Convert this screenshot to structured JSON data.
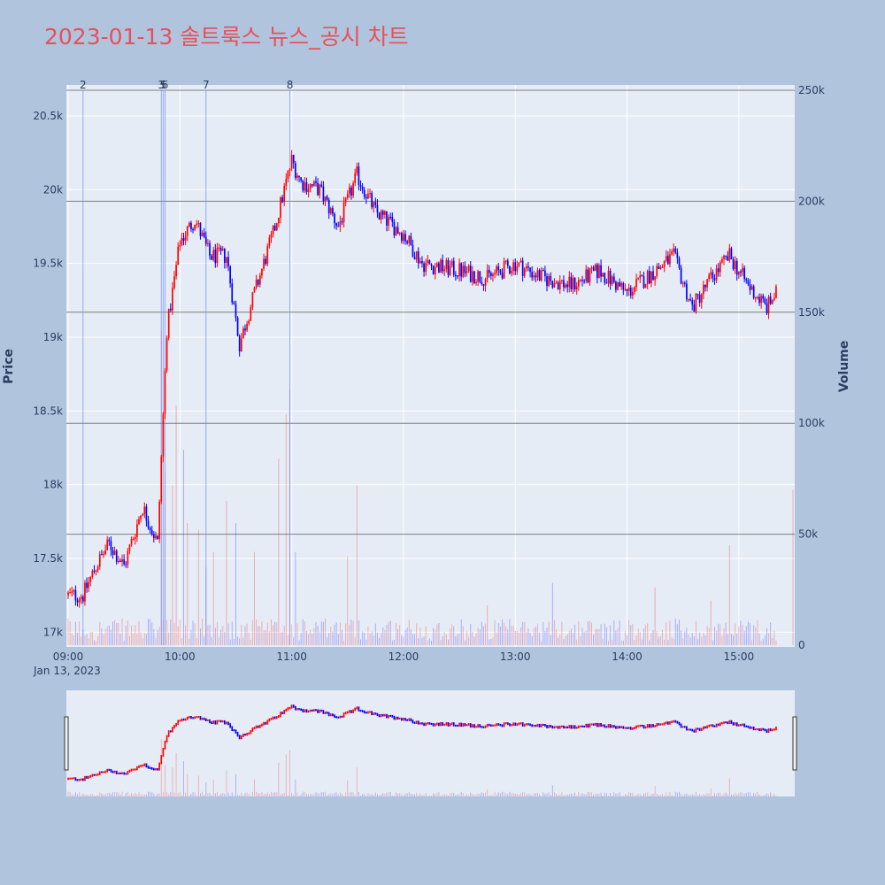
{
  "title": "2023-01-13 솔트룩스 뉴스_공시 차트",
  "chart_data": {
    "type": "candlestick",
    "title": "2023-01-13 솔트룩스 뉴스_공시 차트",
    "date_label": "Jan 13, 2023",
    "xlabel": "",
    "ylabel": "Price",
    "y2label": "Volume",
    "x_ticks": [
      "09:00",
      "10:00",
      "11:00",
      "12:00",
      "13:00",
      "14:00",
      "15:00"
    ],
    "y_ticks": [
      "17k",
      "17.5k",
      "18k",
      "18.5k",
      "19k",
      "19.5k",
      "20k",
      "20.5k"
    ],
    "y2_ticks": [
      "0",
      "50k",
      "100k",
      "150k",
      "200k",
      "250k"
    ],
    "ylim": [
      16900,
      20710
    ],
    "y2lim": [
      0,
      250000
    ],
    "x_range": [
      "09:00",
      "15:30"
    ],
    "colors": {
      "up": "#ff0000",
      "down": "#0000ff",
      "background": "#e5ecf6",
      "paper": "#b0c4de",
      "title": "#e8505b"
    },
    "news_markers": [
      {
        "label": "2",
        "time": "09:08"
      },
      {
        "label": "3",
        "time": "09:50"
      },
      {
        "label": "5",
        "time": "09:51"
      },
      {
        "label": "6",
        "time": "09:52"
      },
      {
        "label": "7",
        "time": "10:14"
      },
      {
        "label": "8",
        "time": "10:59"
      }
    ],
    "price_keypoints": [
      [
        "09:00",
        17250
      ],
      [
        "09:08",
        17250
      ],
      [
        "09:15",
        17450
      ],
      [
        "09:22",
        17600
      ],
      [
        "09:30",
        17450
      ],
      [
        "09:40",
        17850
      ],
      [
        "09:48",
        17600
      ],
      [
        "09:53",
        19050
      ],
      [
        "10:00",
        19650
      ],
      [
        "10:08",
        19800
      ],
      [
        "10:16",
        19550
      ],
      [
        "10:25",
        19550
      ],
      [
        "10:32",
        18950
      ],
      [
        "10:40",
        19300
      ],
      [
        "10:50",
        19700
      ],
      [
        "11:00",
        20200
      ],
      [
        "11:05",
        20050
      ],
      [
        "11:15",
        20000
      ],
      [
        "11:25",
        19750
      ],
      [
        "11:35",
        20100
      ],
      [
        "11:45",
        19850
      ],
      [
        "12:00",
        19700
      ],
      [
        "12:10",
        19500
      ],
      [
        "12:30",
        19450
      ],
      [
        "12:45",
        19400
      ],
      [
        "13:00",
        19500
      ],
      [
        "13:15",
        19400
      ],
      [
        "13:30",
        19350
      ],
      [
        "13:45",
        19450
      ],
      [
        "14:00",
        19300
      ],
      [
        "14:15",
        19450
      ],
      [
        "14:25",
        19550
      ],
      [
        "14:35",
        19200
      ],
      [
        "14:45",
        19400
      ],
      [
        "14:55",
        19550
      ],
      [
        "15:05",
        19350
      ],
      [
        "15:15",
        19200
      ],
      [
        "15:20",
        19300
      ]
    ],
    "volume_peaks": [
      [
        "09:50",
        142000
      ],
      [
        "09:52",
        78000
      ],
      [
        "09:56",
        72000
      ],
      [
        "09:58",
        108000
      ],
      [
        "10:02",
        88000
      ],
      [
        "10:04",
        55000
      ],
      [
        "10:10",
        52000
      ],
      [
        "10:14",
        35000
      ],
      [
        "10:18",
        42000
      ],
      [
        "10:25",
        65000
      ],
      [
        "10:30",
        55000
      ],
      [
        "10:40",
        42000
      ],
      [
        "10:53",
        84000
      ],
      [
        "10:57",
        104000
      ],
      [
        "10:59",
        115000
      ],
      [
        "11:02",
        42000
      ],
      [
        "11:30",
        40000
      ],
      [
        "11:35",
        72000
      ],
      [
        "12:45",
        18000
      ],
      [
        "13:20",
        28000
      ],
      [
        "14:15",
        26000
      ],
      [
        "14:45",
        20000
      ],
      [
        "14:55",
        45000
      ],
      [
        "15:25",
        70000
      ]
    ]
  }
}
